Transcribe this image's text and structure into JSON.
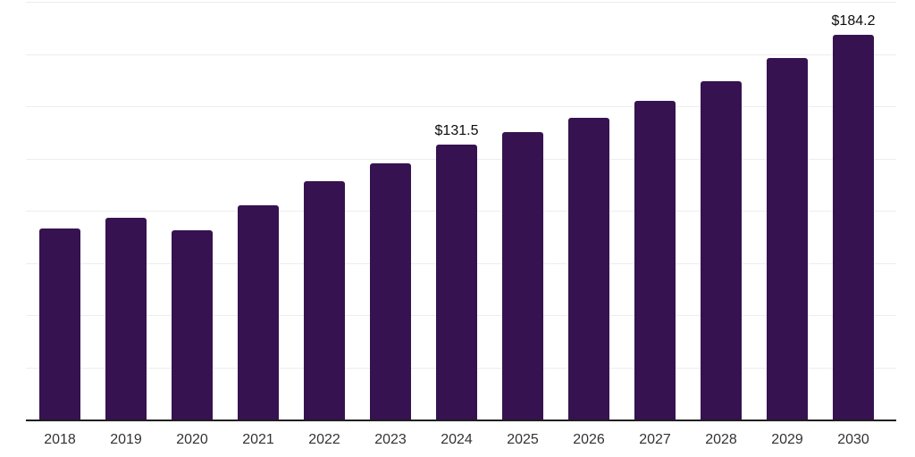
{
  "chart_data": {
    "type": "bar",
    "title": "",
    "xlabel": "",
    "ylabel": "",
    "categories": [
      "2018",
      "2019",
      "2020",
      "2021",
      "2022",
      "2023",
      "2024",
      "2025",
      "2026",
      "2027",
      "2028",
      "2029",
      "2030"
    ],
    "values": [
      91.5,
      96.7,
      90.7,
      102.5,
      114.0,
      122.8,
      131.5,
      137.8,
      144.5,
      152.4,
      162.1,
      172.9,
      184.2
    ],
    "data_labels": [
      "",
      "",
      "",
      "",
      "",
      "",
      "$131.5",
      "",
      "",
      "",
      "",
      "",
      "$184.2"
    ],
    "ylim": [
      0,
      200
    ],
    "grid_step": 25,
    "grid": "horizontal-only",
    "legend": "none",
    "colors": {
      "bar": "#361250",
      "axis": "#1f1f1f",
      "grid": "#ededed",
      "tick_label": "#333333",
      "data_label": "#0d0d0d",
      "background": "#ffffff"
    }
  }
}
